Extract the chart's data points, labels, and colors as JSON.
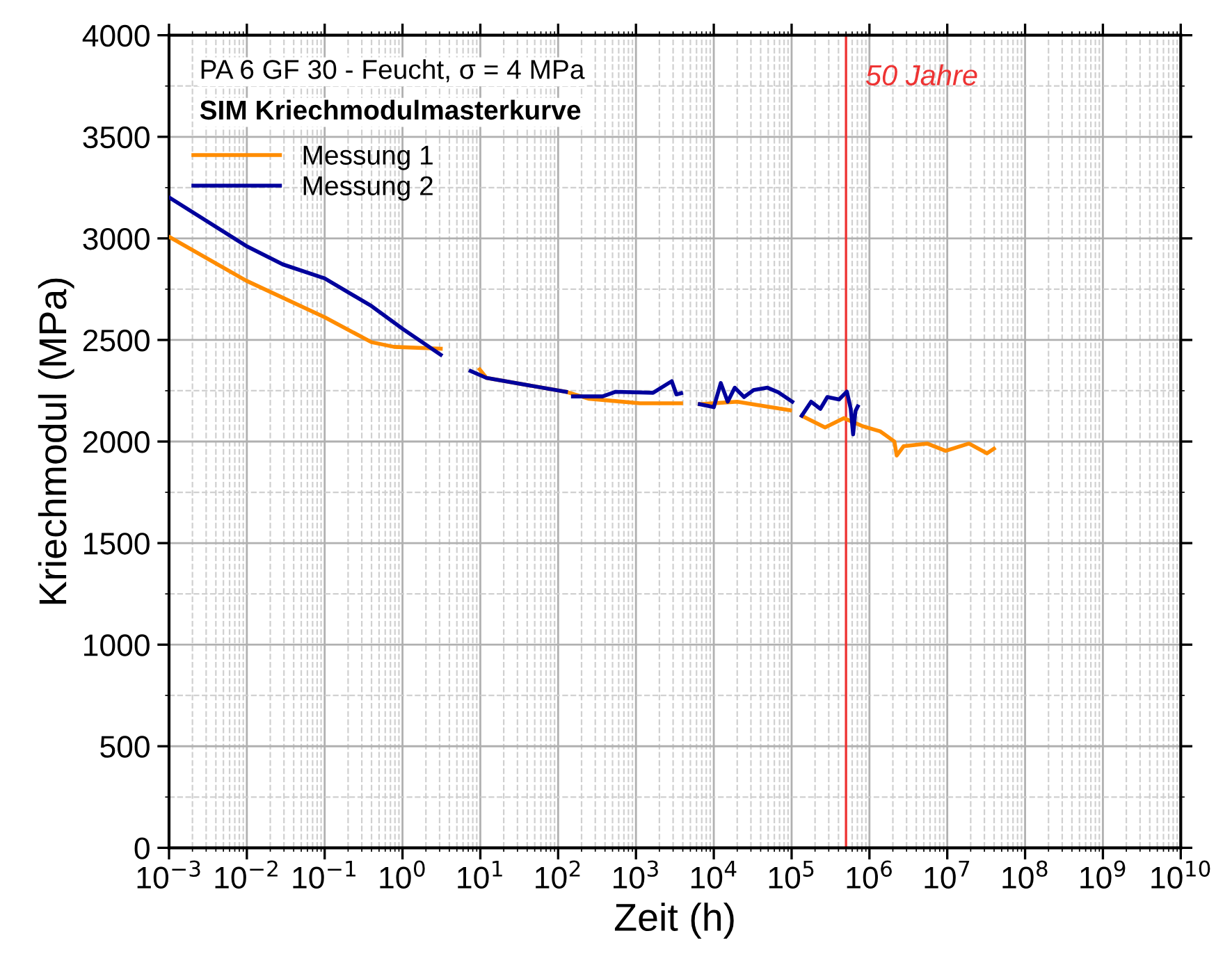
{
  "chart_data": {
    "type": "line",
    "xlabel": "Zeit (h)",
    "ylabel": "Kriechmodul (MPa)",
    "annotations": [
      "PA 6 GF 30 - Feucht, σ = 4 MPa",
      "SIM Kriechmodulmasterkurve"
    ],
    "log": "x",
    "xlim": [
      0.001,
      10000000000
    ],
    "ylim": [
      0,
      4000
    ],
    "xticks": [
      {
        "value": 0.001,
        "label": "10$^{−3}$"
      },
      {
        "value": 0.01,
        "label": "10$^{−2}$"
      },
      {
        "value": 0.1,
        "label": "10$^{−1}$"
      },
      {
        "value": 1,
        "label": "10$^{0}$"
      },
      {
        "value": 10,
        "label": "10$^{1}$"
      },
      {
        "value": 100,
        "label": "10$^{2}$"
      },
      {
        "value": 1000,
        "label": "10$^{3}$"
      },
      {
        "value": 10000,
        "label": "10$^{4}$"
      },
      {
        "value": 100000,
        "label": "10$^{5}$"
      },
      {
        "value": 1000000,
        "label": "10$^{6}$"
      },
      {
        "value": 10000000,
        "label": "10$^{7}$"
      },
      {
        "value": 100000000,
        "label": "10$^{8}$"
      },
      {
        "value": 1000000000,
        "label": "10$^{9}$"
      },
      {
        "value": 10000000000,
        "label": "10$^{10}$"
      }
    ],
    "yticks": [
      0,
      500,
      1000,
      1500,
      2000,
      2500,
      3000,
      3500,
      4000
    ],
    "grid": true,
    "legend": "top left",
    "line_style": "solid",
    "marker": "none",
    "ref_lines": [
      {
        "axis": "x",
        "value": 500000,
        "label": "50 Jahre",
        "color": "#ee3333"
      }
    ],
    "series": [
      {
        "name": "Messung 1",
        "color": "#ff8c00",
        "x": [
          0.001,
          0.0098,
          0.1,
          0.4,
          0.78,
          3.1,
          5,
          9.8,
          12,
          126,
          245,
          1120,
          3800,
          5000,
          6600,
          20000,
          40000,
          95500,
          115000,
          135000,
          269000,
          468000,
          813000,
          1380000,
          2090000,
          2240000,
          2750000,
          5500000,
          9550000,
          19000000,
          32400000,
          39800000
        ],
        "values": [
          3008,
          2792,
          2612,
          2489,
          2466,
          2457,
          null,
          2355,
          2313,
          2245,
          2211,
          2188,
          2188,
          null,
          2184,
          2196,
          2177,
          2154,
          null,
          2127,
          2069,
          2115,
          2076,
          2050,
          2000,
          1931,
          1977,
          1990,
          1954,
          1990,
          1942,
          1965
        ]
      },
      {
        "name": "Messung 2",
        "color": "#00009c",
        "x": [
          0.001,
          0.0098,
          0.029,
          0.1,
          0.4,
          1.02,
          3.1,
          5,
          7.5,
          12,
          126,
          140,
          155,
          372,
          550,
          1660,
          2880,
          3310,
          3800,
          5000,
          6600,
          10000,
          12300,
          15100,
          18600,
          24500,
          32400,
          49000,
          67600,
          102000,
          115000,
          135000,
          178000,
          234000,
          288000,
          407000,
          513000,
          575000,
          617000,
          661000,
          708000
        ],
        "values": [
          3202,
          2963,
          2872,
          2803,
          2667,
          2553,
          2427,
          null,
          2347,
          2313,
          2245,
          null,
          2222,
          2222,
          2245,
          2240,
          2297,
          2232,
          2238,
          null,
          2184,
          2169,
          2288,
          2196,
          2265,
          2219,
          2253,
          2265,
          2242,
          2196,
          null,
          2127,
          2196,
          2161,
          2219,
          2207,
          2246,
          2161,
          2035,
          2150,
          2173
        ]
      }
    ]
  }
}
